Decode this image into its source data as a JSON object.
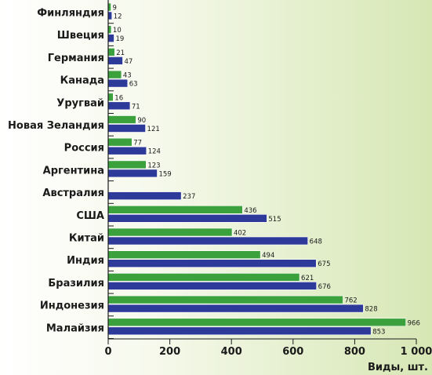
{
  "chart_data": {
    "type": "bar",
    "orientation": "horizontal",
    "categories": [
      "Финляндия",
      "Швеция",
      "Германия",
      "Канада",
      "Уругвай",
      "Новая Зеландия",
      "Россия",
      "Аргентина",
      "Австралия",
      "США",
      "Китай",
      "Индия",
      "Бразилия",
      "Индонезия",
      "Малайзия"
    ],
    "series": [
      {
        "color": "#3aa13d",
        "values": [
          9,
          10,
          21,
          43,
          16,
          90,
          77,
          123,
          null,
          436,
          402,
          494,
          621,
          762,
          966
        ]
      },
      {
        "color": "#2e3a9a",
        "values": [
          12,
          19,
          47,
          63,
          71,
          121,
          124,
          159,
          237,
          515,
          648,
          675,
          676,
          828,
          853
        ]
      }
    ],
    "xlabel": "Виды, шт.",
    "xlim": [
      0,
      1000
    ],
    "x_ticks": [
      0,
      200,
      400,
      600,
      800,
      1000
    ],
    "x_tick_labels": [
      "0",
      "200",
      "400",
      "600",
      "800",
      "1 000"
    ],
    "background": "light green gradient",
    "grid": false
  }
}
